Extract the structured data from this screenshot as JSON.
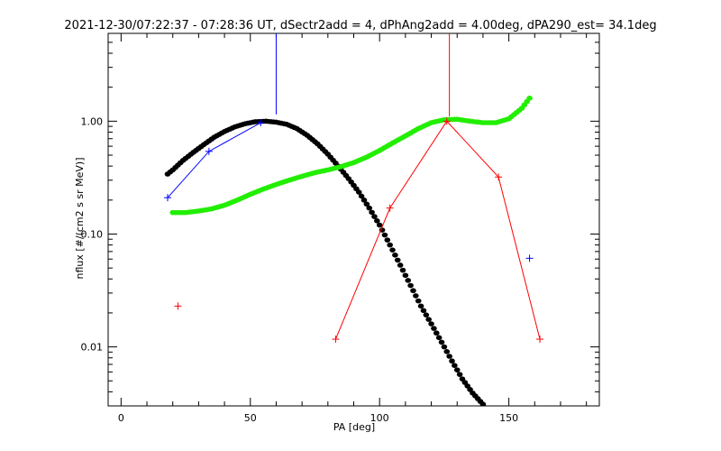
{
  "chart_data": {
    "type": "scatter",
    "title": "2021-12-30/07:22:37 - 07:28:36 UT, dSectr2add = 4, dPhAng2add = 4.00deg, dPA290_est=  34.1deg",
    "xlabel": "PA [deg]",
    "ylabel": "nflux [#/(cm2 s sr MeV)]",
    "xlim": [
      -5,
      185
    ],
    "ylim": [
      0.003,
      6
    ],
    "y_scale": "log",
    "x_ticks": [
      0,
      50,
      100,
      150
    ],
    "x_tick_labels": [
      "0",
      "50",
      "100",
      "150"
    ],
    "y_ticks": [
      0.01,
      0.1,
      1.0
    ],
    "y_tick_labels": [
      "0.01",
      "0.10",
      "1.00"
    ],
    "grid": false,
    "legend": "none",
    "series": [
      {
        "style": "thick-dots",
        "color": "#000000",
        "x": [
          18,
          20,
          24,
          28,
          32,
          36,
          40,
          44,
          48,
          52,
          56,
          60,
          64,
          68,
          72,
          76,
          80,
          84,
          88,
          92,
          96,
          100,
          104,
          108,
          112,
          116,
          120,
          124,
          128,
          132,
          136,
          140
        ],
        "y": [
          0.34,
          0.37,
          0.45,
          0.53,
          0.62,
          0.72,
          0.81,
          0.89,
          0.95,
          0.99,
          1.0,
          0.98,
          0.94,
          0.86,
          0.75,
          0.63,
          0.51,
          0.4,
          0.31,
          0.235,
          0.17,
          0.12,
          0.08,
          0.053,
          0.035,
          0.023,
          0.016,
          0.011,
          0.0075,
          0.0052,
          0.0039,
          0.0031
        ]
      },
      {
        "style": "thick-dots",
        "color": "#22ee00",
        "x": [
          20,
          25,
          30,
          35,
          40,
          45,
          50,
          55,
          60,
          65,
          70,
          75,
          80,
          85,
          90,
          95,
          100,
          105,
          110,
          115,
          120,
          125,
          130,
          135,
          140,
          145,
          150,
          155,
          158
        ],
        "y": [
          0.155,
          0.155,
          0.16,
          0.167,
          0.18,
          0.2,
          0.225,
          0.25,
          0.275,
          0.3,
          0.325,
          0.35,
          0.37,
          0.395,
          0.43,
          0.48,
          0.55,
          0.64,
          0.74,
          0.86,
          0.97,
          1.03,
          1.04,
          1.0,
          0.97,
          0.97,
          1.05,
          1.3,
          1.6
        ]
      },
      {
        "style": "line-plus",
        "color": "#0000ff",
        "x": [
          18,
          34,
          54
        ],
        "y": [
          0.21,
          0.54,
          0.97
        ]
      },
      {
        "style": "plus",
        "color": "#0000ff",
        "x": [
          158
        ],
        "y": [
          0.061
        ]
      },
      {
        "style": "errorbar-up",
        "color": "#0000ff",
        "x": [
          60
        ],
        "y_from": [
          1.15
        ],
        "y_to": [
          6
        ]
      },
      {
        "style": "line-plus",
        "color": "#ff0000",
        "x": [
          83,
          104,
          126,
          146,
          162
        ],
        "y": [
          0.0117,
          0.17,
          1.0,
          0.32,
          0.0117
        ]
      },
      {
        "style": "plus",
        "color": "#ff0000",
        "x": [
          22
        ],
        "y": [
          0.023
        ]
      },
      {
        "style": "errorbar-up",
        "color": "#ff0000",
        "x": [
          127
        ],
        "y_from": [
          1.1
        ],
        "y_to": [
          6
        ]
      }
    ]
  }
}
